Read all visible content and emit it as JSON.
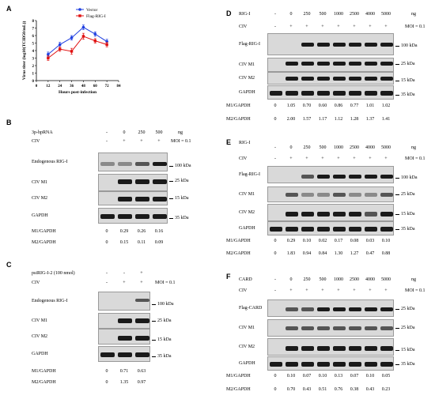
{
  "panelA": {
    "label": "A",
    "chart_data": {
      "type": "line",
      "x": [
        12,
        24,
        36,
        48,
        60,
        72
      ],
      "xlabel": "Hours post-infection",
      "ylabel": "Virus titer (log10(TCID50/mL))",
      "xlim": [
        0,
        84
      ],
      "ylim": [
        0,
        8
      ],
      "xticks": [
        0,
        12,
        24,
        36,
        48,
        60,
        72,
        84
      ],
      "yticks": [
        0,
        1,
        2,
        3,
        4,
        5,
        6,
        7,
        8
      ],
      "series": [
        {
          "name": "Vector",
          "color": "#1f3fe0",
          "values": [
            3.5,
            4.8,
            5.7,
            7.1,
            6.2,
            5.2
          ],
          "err": [
            0.3,
            0.3,
            0.3,
            0.3,
            0.3,
            0.3
          ]
        },
        {
          "name": "Flag-RIG-I",
          "color": "#e01010",
          "values": [
            3.0,
            4.2,
            3.9,
            5.9,
            5.3,
            4.8
          ],
          "err": [
            0.3,
            0.3,
            0.4,
            0.4,
            0.3,
            0.3
          ]
        }
      ],
      "legend": "top-right"
    }
  },
  "panelB": {
    "label": "B",
    "treatment": "3p-hpRNA",
    "doses": [
      "-",
      "0",
      "250",
      "500"
    ],
    "unit": "ng",
    "civ_label": "CIV",
    "civ": [
      "-",
      "+",
      "+",
      "+"
    ],
    "moi": "MOI = 0.1",
    "bands": [
      "Endogenous RIG-I",
      "CIV M1",
      "CIV M2",
      "GAPDH"
    ],
    "markers": [
      "100 kDa",
      "25 kDa",
      "15 kDa",
      "35 kDa"
    ],
    "m1_label": "M1/GAPDH",
    "m1": [
      "0",
      "0.29",
      "0.26",
      "0.16"
    ],
    "m2_label": "M2/GAPDH",
    "m2": [
      "0",
      "0.15",
      "0.11",
      "0.09"
    ]
  },
  "panelC": {
    "label": "C",
    "treatment": "psiRIG-I-2 (100 nmol)",
    "si": [
      "-",
      "-",
      "+"
    ],
    "civ_label": "CIV",
    "civ": [
      "-",
      "+",
      "+"
    ],
    "moi": "MOI = 0.1",
    "bands": [
      "Endogenous RIG-I",
      "CIV M1",
      "CIV M2",
      "GAPDH"
    ],
    "markers": [
      "100 kDa",
      "25 kDa",
      "15 kDa",
      "35 kDa"
    ],
    "m1_label": "M1/GAPDH",
    "m1": [
      "0",
      "0.71",
      "0.63"
    ],
    "m2_label": "M2/GAPDH",
    "m2": [
      "0",
      "1.35",
      "0.97"
    ]
  },
  "panelD": {
    "label": "D",
    "treatment": "RIG-I",
    "doses": [
      "-",
      "0",
      "250",
      "500",
      "1000",
      "2500",
      "4000",
      "5000"
    ],
    "unit": "ng",
    "civ_label": "CIV",
    "civ": [
      "-",
      "+",
      "+",
      "+",
      "+",
      "+",
      "+",
      "+"
    ],
    "moi": "MOI = 0.1",
    "bands": [
      "Flag-RIG-I",
      "CIV M1",
      "CIV M2",
      "GAPDH"
    ],
    "markers": [
      "100 kDa",
      "25 kDa",
      "15 kDa",
      "35 kDa"
    ],
    "m1_label": "M1/GAPDH",
    "m1": [
      "0",
      "1.05",
      "0.70",
      "0.60",
      "0.86",
      "0.77",
      "1.01",
      "1.02"
    ],
    "m2_label": "M2/GAPDH",
    "m2": [
      "0",
      "2.00",
      "1.57",
      "1.17",
      "1.12",
      "1.28",
      "1.37",
      "1.41"
    ]
  },
  "panelE": {
    "label": "E",
    "treatment": "RIG-I",
    "doses": [
      "-",
      "0",
      "250",
      "500",
      "1000",
      "2500",
      "4000",
      "5000"
    ],
    "unit": "ng",
    "civ_label": "CIV",
    "civ": [
      "-",
      "+",
      "+",
      "+",
      "+",
      "+",
      "+",
      "+"
    ],
    "moi": "MOI = 0.1",
    "bands": [
      "Flag-RIG-I",
      "CIV M1",
      "CIV M2",
      "GAPDH"
    ],
    "markers": [
      "100 kDa",
      "25 kDa",
      "15 kDa",
      "35 kDa"
    ],
    "m1_label": "M1/GAPDH",
    "m1": [
      "0",
      "0.29",
      "0.10",
      "0.02",
      "0.17",
      "0.08",
      "0.03",
      "0.10"
    ],
    "m2_label": "M2/GAPDH",
    "m2": [
      "0",
      "1.83",
      "0.94",
      "0.84",
      "1.30",
      "1.27",
      "0.47",
      "0.88"
    ]
  },
  "panelF": {
    "label": "F",
    "treatment": "CARD",
    "doses": [
      "-",
      "0",
      "250",
      "500",
      "1000",
      "2500",
      "4000",
      "5000"
    ],
    "unit": "ng",
    "civ_label": "CIV",
    "civ": [
      "-",
      "+",
      "+",
      "+",
      "+",
      "+",
      "+",
      "+"
    ],
    "moi": "MOI = 0.1",
    "bands": [
      "Flag-CARD",
      "CIV M1",
      "CIV M2",
      "GAPDH"
    ],
    "markers": [
      "25 kDa",
      "25 kDa",
      "15 kDa",
      "35 kDa"
    ],
    "m1_label": "M1/GAPDH",
    "m1": [
      "0",
      "0.10",
      "0.07",
      "0.10",
      "0.13",
      "0.07",
      "0.10",
      "0.05"
    ],
    "m2_label": "M2/GAPDH",
    "m2": [
      "0",
      "0.70",
      "0.43",
      "0.51",
      "0.76",
      "0.38",
      "0.43",
      "0.23"
    ]
  }
}
